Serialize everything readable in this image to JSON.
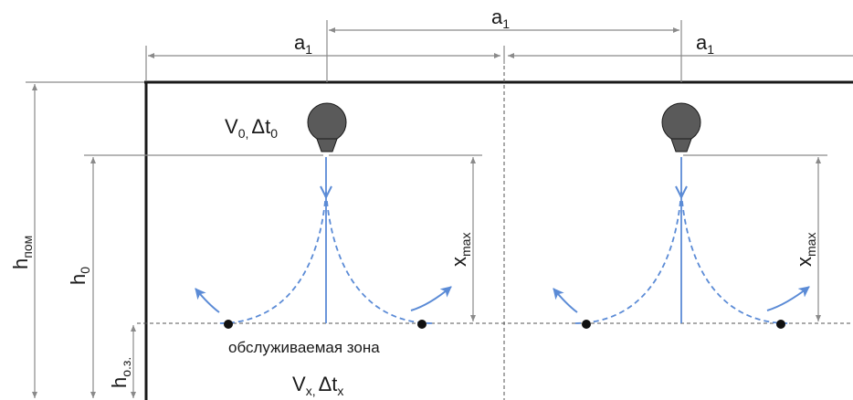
{
  "labels": {
    "a1_top": {
      "main": "a",
      "sub": "1"
    },
    "a1_left": {
      "main": "a",
      "sub": "1"
    },
    "a1_right": {
      "main": "a",
      "sub": "1"
    },
    "diffuser": {
      "v": "V",
      "v_sub": "0,",
      "dt": "Δt",
      "dt_sub": "0"
    },
    "h_room": {
      "main": "h",
      "sub": "пом"
    },
    "h_zero": {
      "main": "h",
      "sub": "0"
    },
    "h_zone": {
      "main": "h",
      "sub": "о.з."
    },
    "x_max_left": {
      "main": "x",
      "sub": "max"
    },
    "x_max_right": {
      "main": "x",
      "sub": "max"
    },
    "service_zone": "обслуживаемая зона",
    "zone_params": {
      "v": "V",
      "v_sub": "x,",
      "dt": "Δt",
      "dt_sub": "x"
    }
  },
  "colors": {
    "line": "#1a1a1a",
    "dim": "#8a8a8a",
    "flow": "#5b8bd6",
    "diffuser": "#5a5a5a"
  },
  "icons": {
    "diffuser": "ceiling-diffuser-icon",
    "airflow": "airflow-arrow-icon",
    "point": "measurement-point-icon"
  }
}
